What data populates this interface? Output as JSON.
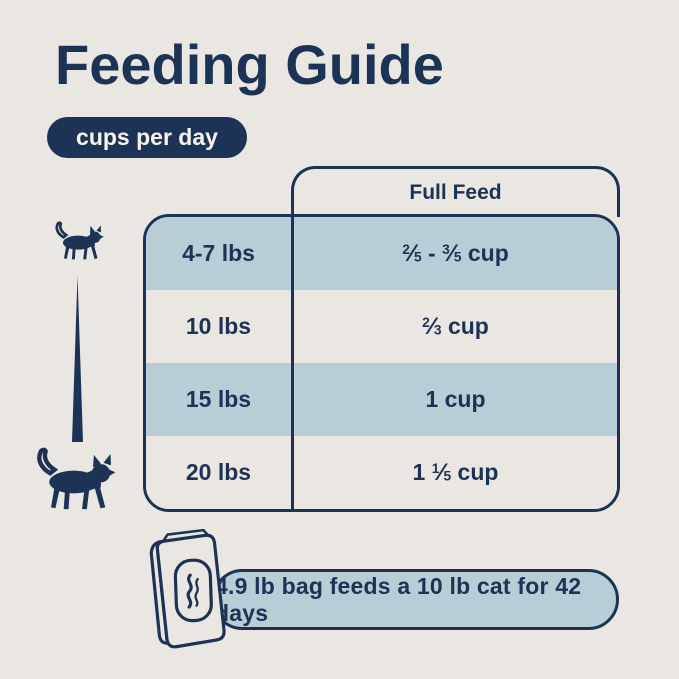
{
  "title": "Feeding Guide",
  "badge_label": "cups per day",
  "table": {
    "column_header": "Full Feed",
    "rows": [
      {
        "weight": "4-7 lbs",
        "amount": [
          {
            "frac": [
              "2",
              "5"
            ]
          },
          {
            "text": " - "
          },
          {
            "frac": [
              "3",
              "5"
            ]
          },
          {
            "text": " cup"
          }
        ]
      },
      {
        "weight": "10 lbs",
        "amount": [
          {
            "frac": [
              "2",
              "3"
            ]
          },
          {
            "text": " cup"
          }
        ]
      },
      {
        "weight": "15 lbs",
        "amount": [
          {
            "text": "1 cup"
          }
        ]
      },
      {
        "weight": "20 lbs",
        "amount": [
          {
            "text": "1 "
          },
          {
            "frac": [
              "1",
              "5"
            ]
          },
          {
            "text": " cup"
          }
        ]
      }
    ]
  },
  "footer": {
    "banner_text": "4.9 lb bag feeds a 10 lb cat for 42 days"
  },
  "icons": {
    "small_cat": "small-cat-silhouette",
    "large_cat": "large-cat-silhouette",
    "scale_wedge": "tapered-scale-line",
    "food_bag": "pet-food-bag-outline",
    "steam": "steam-swirl"
  },
  "colors": {
    "navy": "#1d3356",
    "light_blue": "#b8cdd6",
    "background": "#eae6e2",
    "badge_text": "#f8f6f3"
  },
  "chart_data": {
    "type": "table",
    "title": "Feeding Guide",
    "subtitle": "cups per day",
    "columns": [
      "",
      "Full Feed"
    ],
    "rows": [
      [
        "4-7 lbs",
        "2/5 - 3/5 cup"
      ],
      [
        "10 lbs",
        "2/3 cup"
      ],
      [
        "15 lbs",
        "1 cup"
      ],
      [
        "20 lbs",
        "1 1/5 cup"
      ]
    ],
    "note": "4.9 lb bag feeds a 10 lb cat for 42 days"
  }
}
